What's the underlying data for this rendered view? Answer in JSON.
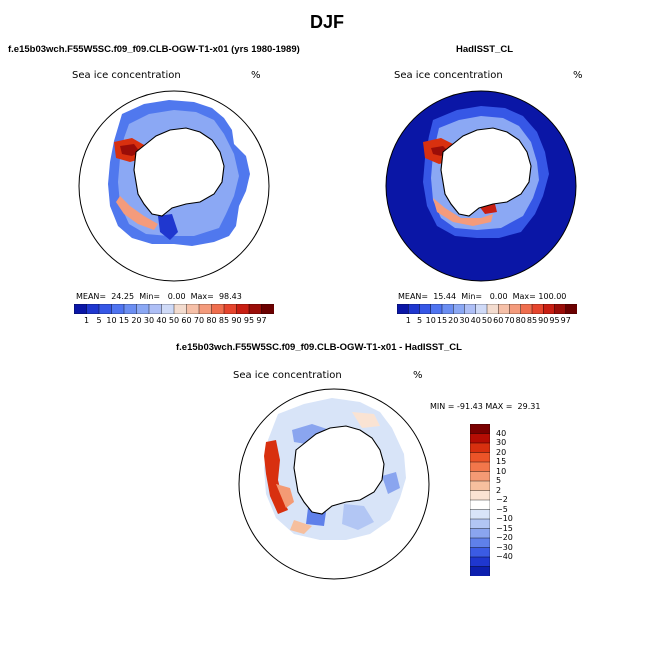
{
  "title": "DJF",
  "panels": [
    {
      "title": "f.e15b03wch.F55W5SC.f09_f09.CLB-OGW-T1-x01 (yrs 1980-1989)",
      "variable": "Sea ice concentration",
      "units": "%",
      "stats": "MEAN=  24.25  Min=   0.00  Max=  98.43"
    },
    {
      "title": "HadISST_CL",
      "variable": "Sea ice concentration",
      "units": "%",
      "stats": "MEAN=  15.44  Min=   0.00  Max= 100.00"
    },
    {
      "title": "f.e15b03wch.F55W5SC.f09_f09.CLB-OGW-T1-x01 - HadISST_CL",
      "variable": "Sea ice concentration",
      "units": "%",
      "stats": "MIN = -91.43 MAX =  29.31"
    }
  ],
  "colorbar_abs": {
    "labels": [
      "1",
      "5",
      "10",
      "15",
      "20",
      "30",
      "40",
      "50",
      "60",
      "70",
      "80",
      "85",
      "90",
      "95",
      "97"
    ],
    "colors": [
      "#0a16a6",
      "#1f37cf",
      "#3657e6",
      "#4f74f0",
      "#6b8ef2",
      "#8ba8f4",
      "#aebff6",
      "#cfdaf7",
      "#f3dccf",
      "#f6c0a8",
      "#f49b7c",
      "#ef6e4e",
      "#e5452d",
      "#c81e12",
      "#9a0d08",
      "#6b0000"
    ]
  },
  "colorbar_diff": {
    "labels": [
      "40",
      "30",
      "20",
      "15",
      "10",
      "5",
      "2",
      "−2",
      "−5",
      "−10",
      "−15",
      "−20",
      "−30",
      "−40"
    ],
    "colors": [
      "#7a0000",
      "#b50d04",
      "#d8300f",
      "#ec5428",
      "#f2774b",
      "#f49a74",
      "#f6bf9e",
      "#fae3d3",
      "#ffffff",
      "#d8e4f8",
      "#b2c6f4",
      "#8aa5ef",
      "#5f80ea",
      "#3b5be4",
      "#1f37cf",
      "#0d1fae"
    ]
  }
}
